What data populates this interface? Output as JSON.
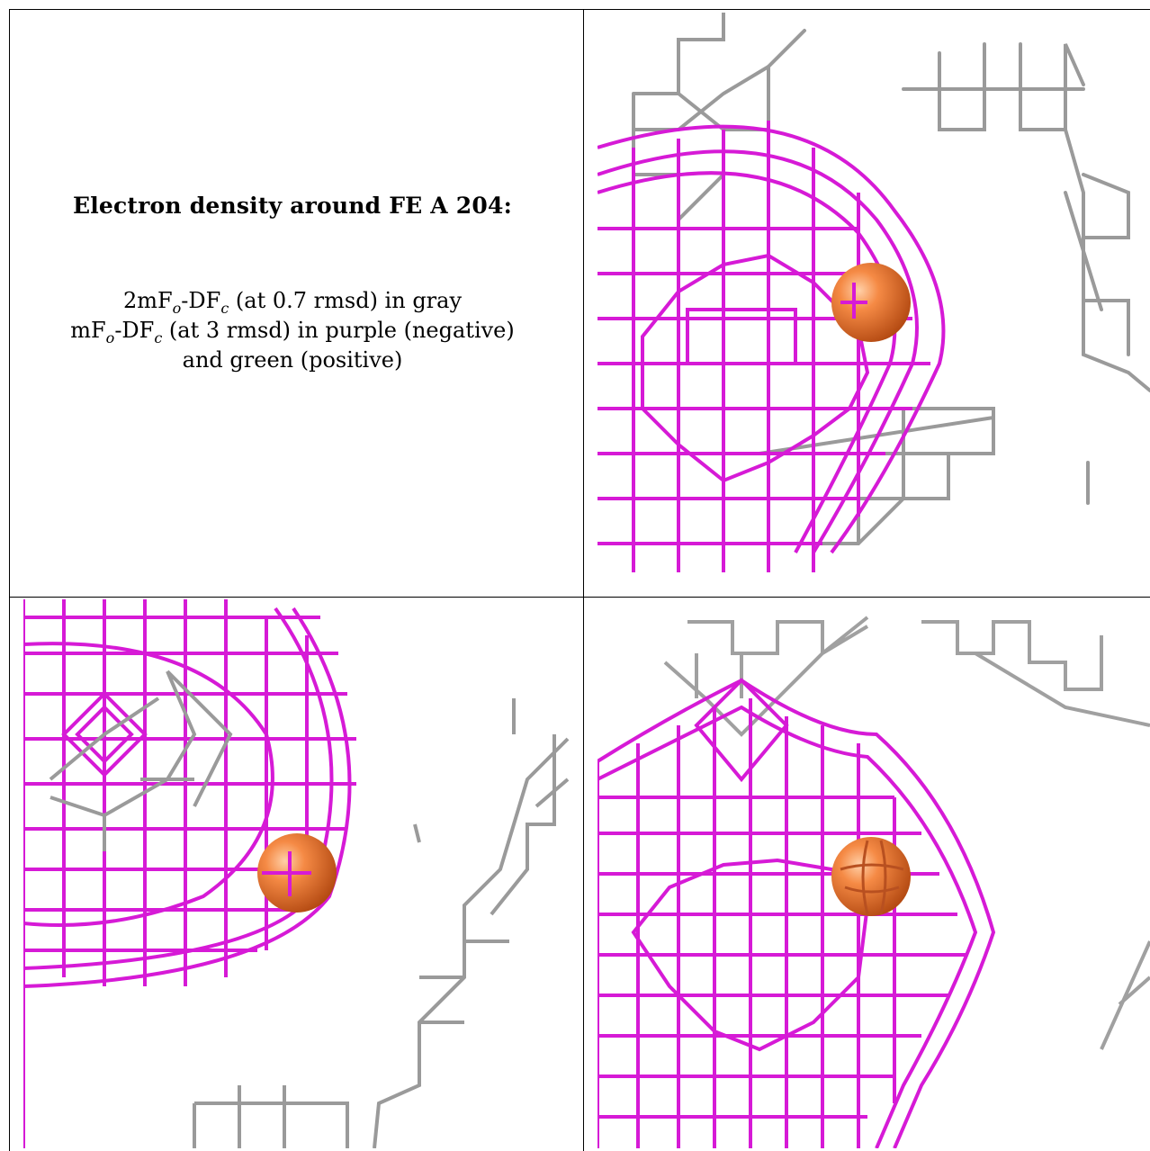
{
  "caption": {
    "title": "Electron density around FE A 204:",
    "line1_prefix": "2mF",
    "line1_sub1": "o",
    "line1_mid": "-DF",
    "line1_sub2": "c",
    "line1_suffix": " (at 0.7 rmsd) in gray",
    "line2_prefix": "mF",
    "line2_sub1": "o",
    "line2_mid": "-DF",
    "line2_sub2": "c",
    "line2_suffix": " (at 3 rmsd) in purple (negative)",
    "line3": "and green (positive)"
  },
  "colors": {
    "negative_mesh": "#d61ad6",
    "negative_mesh_dark": "#8a1a8a",
    "positive_mesh": "#22b022",
    "gray_mesh": "#9a9a9a",
    "gray_mesh_light": "#d4d4d4",
    "atom_fe": "#f07a30"
  },
  "panels": [
    {
      "name": "view-1",
      "mesh": "2mFo-DFc gray + mFo-DFc purple",
      "atom": "FE A 204"
    },
    {
      "name": "view-2",
      "mesh": "2mFo-DFc gray + mFo-DFc purple",
      "atom": "FE A 204"
    },
    {
      "name": "view-3",
      "mesh": "2mFo-DFc gray + mFo-DFc purple",
      "atom": "FE A 204"
    }
  ]
}
